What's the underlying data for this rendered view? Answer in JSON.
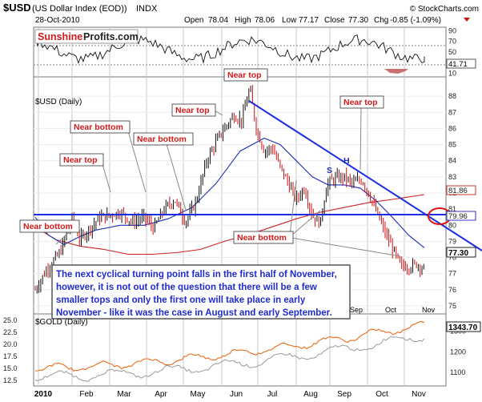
{
  "header": {
    "symbol": "$USD",
    "desc": "(US Dollar Index (EOD))",
    "exch": "INDX",
    "date": "28-Oct-2010",
    "open_label": "Open",
    "open": "78.04",
    "high_label": "High",
    "high": "78.06",
    "low_label": "Low",
    "low": "77.17",
    "close_label": "Close",
    "close": "77.30",
    "chg_label": "Chg",
    "chg": "-0.85 (-1.09%)",
    "copyright": "© StockCharts.com"
  },
  "logo": {
    "part1": "Sunshine",
    "part2": "Profits.com"
  },
  "colors": {
    "price_up": "#111111",
    "price_down": "#cc1111",
    "ma50": "#1a2fb8",
    "ma200": "#cc2222",
    "trend": "#1d2ee0",
    "annotation": "#d31a1a",
    "note": "#1f2bd0",
    "gold": "#ee6a1a",
    "usd_overlay": "#999999",
    "circle": "#e01010"
  },
  "rsi_panel": {
    "ticks": [
      "90",
      "70",
      "50",
      "30",
      "10"
    ],
    "last_label": "41.71"
  },
  "price_panel": {
    "label": "$USD (Daily)",
    "ticks": [
      "88",
      "87",
      "86",
      "85",
      "84",
      "83",
      "82",
      "81",
      "80",
      "79",
      "78",
      "77",
      "76",
      "75"
    ],
    "badges": [
      "81.86",
      "79.96",
      "77.30"
    ],
    "month_labels_inside": [
      "Sep",
      "Oct",
      "Nov"
    ]
  },
  "gold_panel": {
    "label": "$GOLD (Daily)",
    "left_ticks": [
      "25.0",
      "22.5",
      "20.0",
      "17.5",
      "15.0",
      "12.5"
    ],
    "right_ticks": [
      "1300",
      "1200",
      "1100"
    ],
    "badge": "1343.70"
  },
  "xaxis": {
    "labels": [
      "2010",
      "Feb",
      "Mar",
      "Apr",
      "May",
      "Jun",
      "Jul",
      "Aug",
      "Sep",
      "Oct",
      "Nov"
    ]
  },
  "annotations": [
    "Near bottom",
    "Near top",
    "Near bottom",
    "Near bottom",
    "Near top",
    "Near top",
    "Near top",
    "Near bottom",
    "S",
    "H"
  ],
  "note": {
    "line1": "The next cyclical turning point falls in the first half of November,",
    "line2": "however, it is not out of the question that there will be a few",
    "line3": "smaller tops and only the first one will take place in early",
    "line4": "November - like it was the case in August and early September."
  },
  "chart_data": {
    "type": "line",
    "title": "$USD (US Dollar Index (EOD)) INDX",
    "x": [
      "2010-01",
      "2010-02",
      "2010-03",
      "2010-04",
      "2010-05",
      "2010-06",
      "2010-07",
      "2010-08",
      "2010-09",
      "2010-10",
      "2010-11"
    ],
    "ylim": [
      74.5,
      89.2
    ],
    "series": [
      {
        "name": "$USD",
        "values": [
          77.5,
          80.0,
          80.4,
          80.9,
          85.8,
          88.5,
          84.1,
          81.8,
          82.7,
          78.3,
          77.3
        ]
      }
    ],
    "rsi_last": 41.71,
    "ma200_last": 81.86,
    "level_line": 79.96,
    "gold_last": 1343.7
  }
}
